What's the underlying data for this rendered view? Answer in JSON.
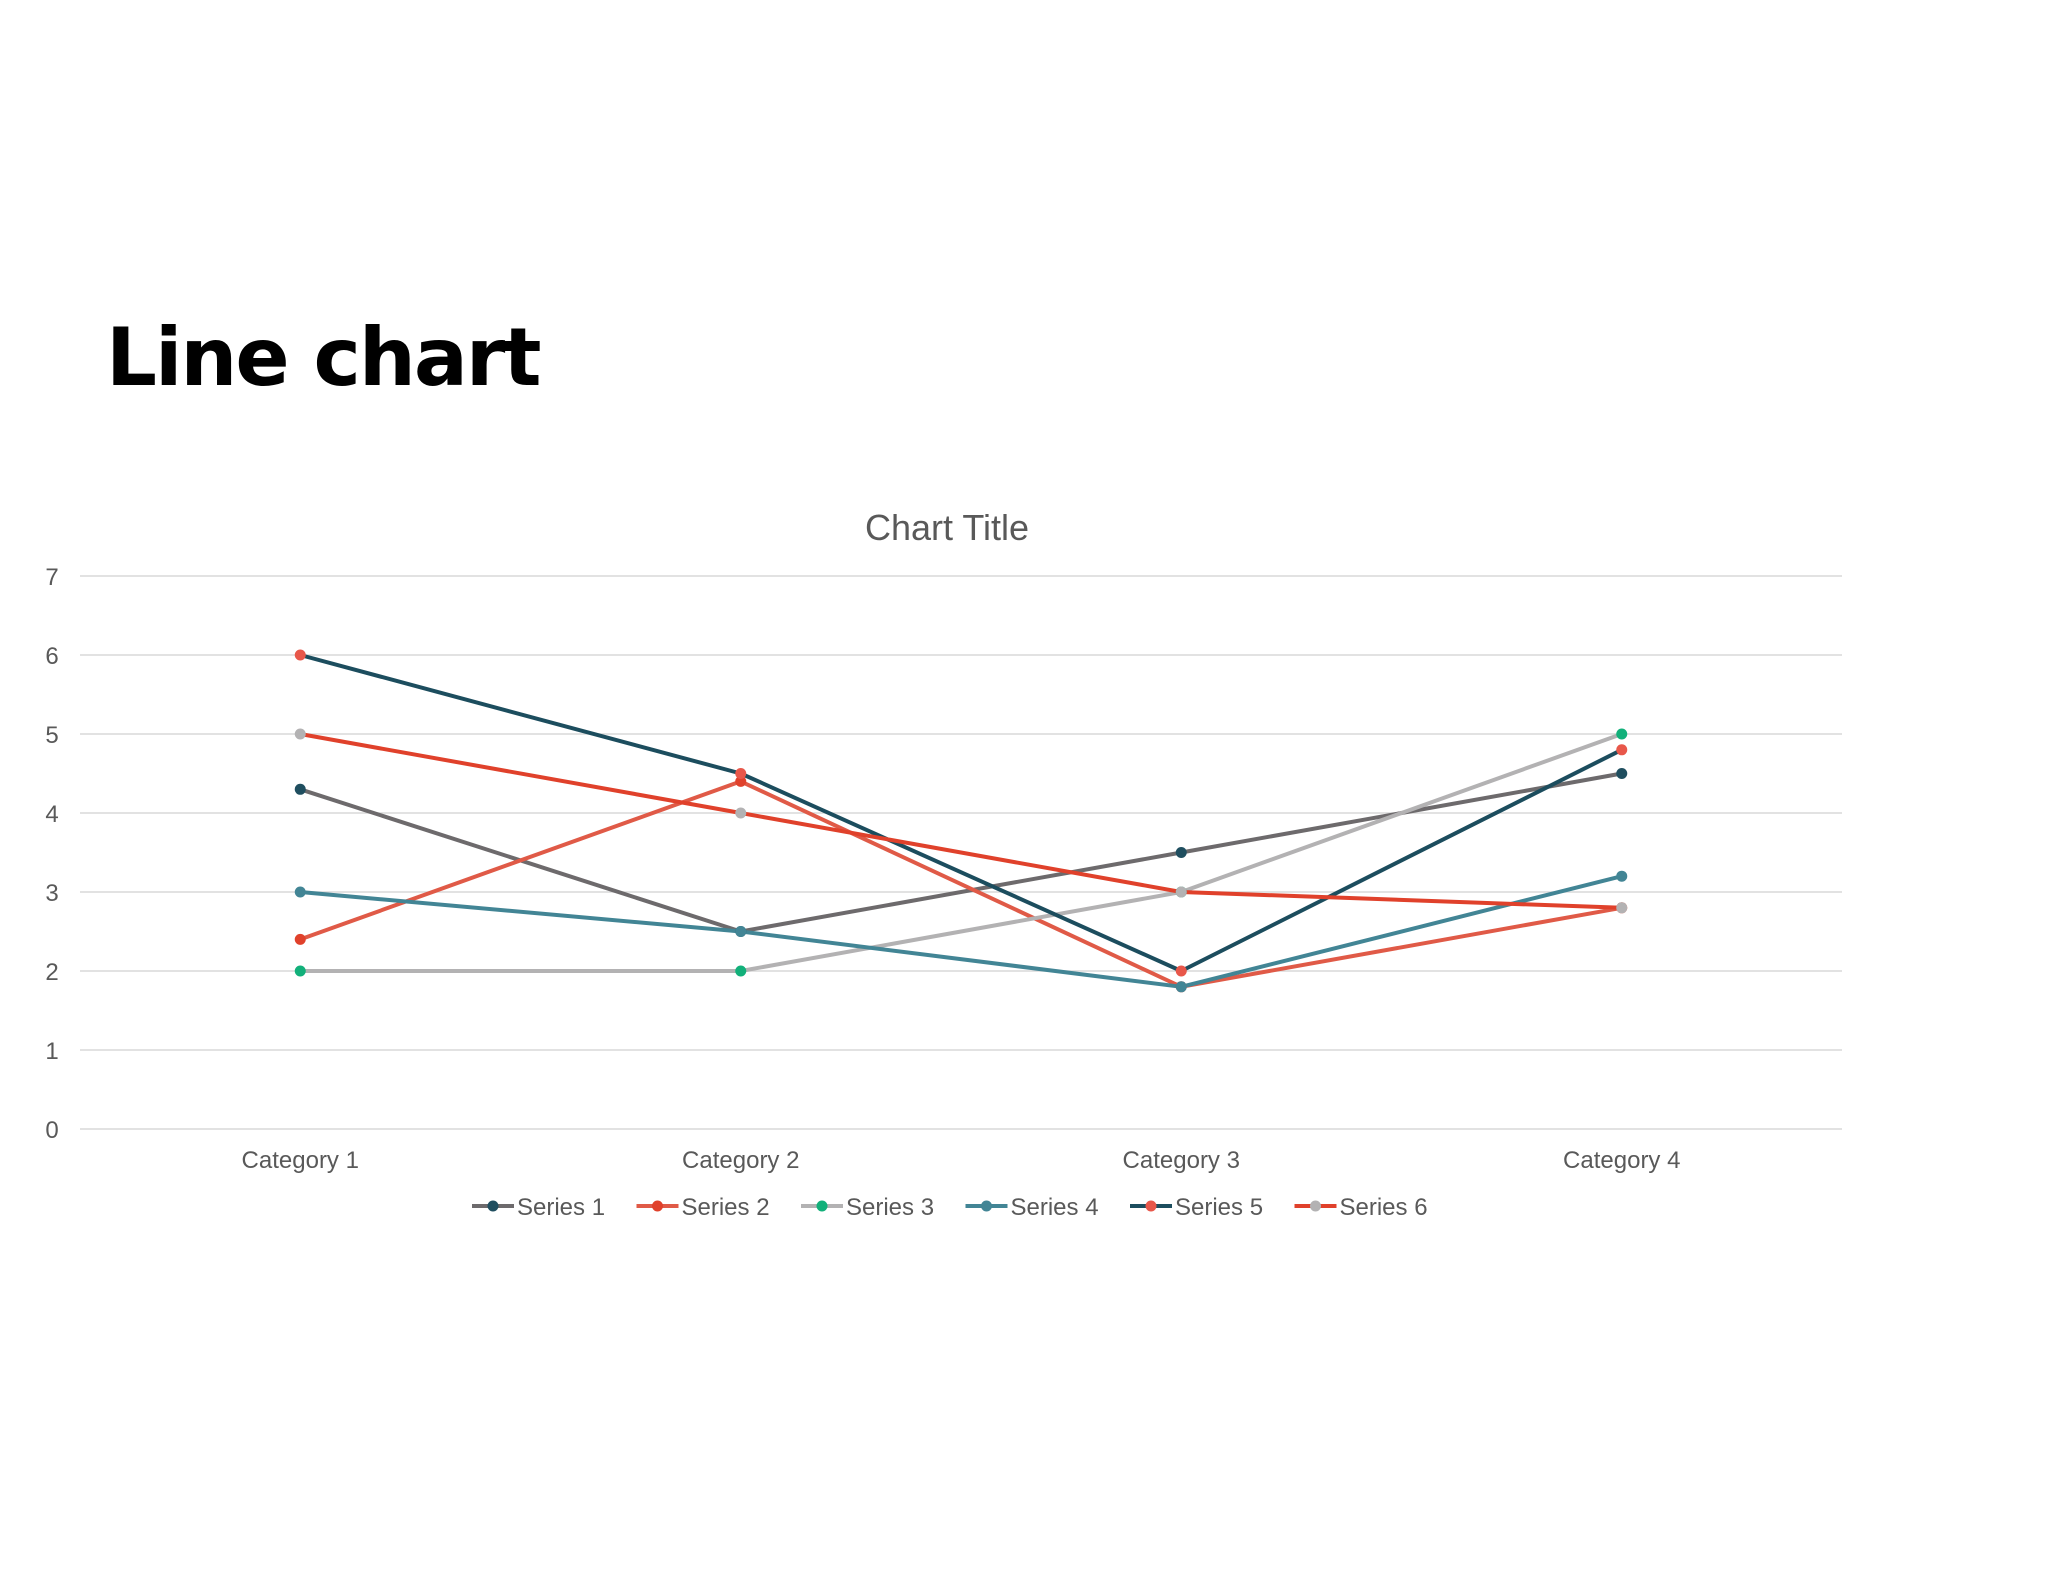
{
  "slide": {
    "title": "Line chart"
  },
  "chart_data": {
    "type": "line",
    "title": "Chart Title",
    "xlabel": "",
    "ylabel": "",
    "categories": [
      "Category 1",
      "Category 2",
      "Category 3",
      "Category 4"
    ],
    "ylim": [
      0,
      7
    ],
    "yticks": [
      "0",
      "1",
      "2",
      "3",
      "4",
      "5",
      "6",
      "7"
    ],
    "grid": true,
    "legend_position": "bottom",
    "series": [
      {
        "name": "Series 1",
        "values": [
          4.3,
          2.5,
          3.5,
          4.5
        ],
        "line_color": "#6d6a6c",
        "marker_color": "#1f4e5f"
      },
      {
        "name": "Series 2",
        "values": [
          2.4,
          4.4,
          1.8,
          2.8
        ],
        "line_color": "#e05a47",
        "marker_color": "#e0412b"
      },
      {
        "name": "Series 3",
        "values": [
          2.0,
          2.0,
          3.0,
          5.0
        ],
        "line_color": "#b3b2b3",
        "marker_color": "#12b07a"
      },
      {
        "name": "Series 4",
        "values": [
          3.0,
          2.5,
          1.8,
          3.2
        ],
        "line_color": "#428595",
        "marker_color": "#428595"
      },
      {
        "name": "Series 5",
        "values": [
          6.0,
          4.5,
          2.0,
          4.8
        ],
        "line_color": "#1c4d5e",
        "marker_color": "#e8574a"
      },
      {
        "name": "Series 6",
        "values": [
          5.0,
          4.0,
          3.0,
          2.8
        ],
        "line_color": "#e0412b",
        "marker_color": "#b3b2b3"
      }
    ],
    "colors": {
      "gridline": "#d9d9d9",
      "axis_text": "#595959",
      "title_text": "#595959"
    }
  }
}
